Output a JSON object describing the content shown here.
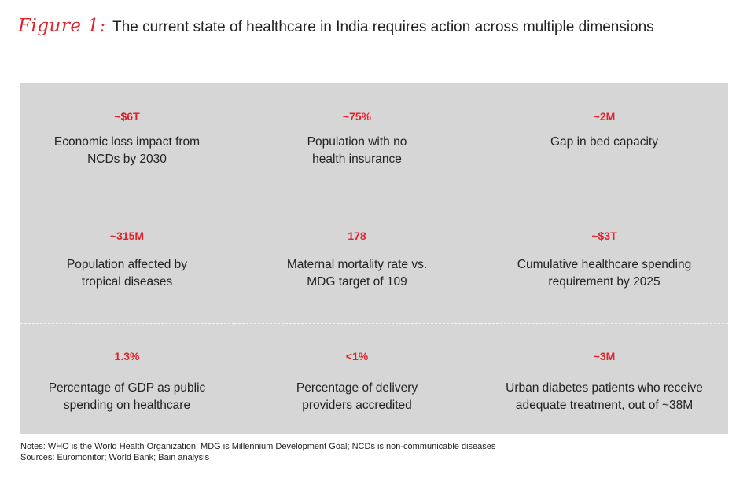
{
  "header": {
    "figure_label": "Figure 1:",
    "title": "The current state of healthcare in India requires action across multiple dimensions"
  },
  "cells": [
    {
      "stat": "~$6T",
      "lines": [
        "Economic loss impact from",
        "NCDs by 2030"
      ]
    },
    {
      "stat": "~75%",
      "lines": [
        "Population with no",
        "health insurance"
      ]
    },
    {
      "stat": "~2M",
      "lines": [
        "Gap in bed capacity",
        ""
      ]
    },
    {
      "stat": "~315M",
      "lines": [
        "Population affected by",
        "tropical diseases"
      ]
    },
    {
      "stat": "178",
      "lines": [
        "Maternal mortality rate vs.",
        "MDG target of 109"
      ]
    },
    {
      "stat": "~$3T",
      "lines": [
        "Cumulative healthcare spending",
        "requirement by 2025"
      ]
    },
    {
      "stat": "1.3%",
      "lines": [
        "Percentage of GDP as public",
        "spending on healthcare"
      ]
    },
    {
      "stat": "<1%",
      "lines": [
        "Percentage of delivery",
        "providers accredited"
      ]
    },
    {
      "stat": "~3M",
      "lines": [
        "Urban diabetes patients who receive",
        "adequate treatment, out of ~38M"
      ]
    }
  ],
  "footer": {
    "notes": "Notes: WHO is the World Health Organization; MDG is Millennium Development Goal; NCDs is non-communicable diseases",
    "sources": "Sources: Euromonitor; World Bank; Bain analysis"
  },
  "colors": {
    "accent": "#e0232a",
    "panel": "#d6d6d7",
    "text": "#222222"
  }
}
